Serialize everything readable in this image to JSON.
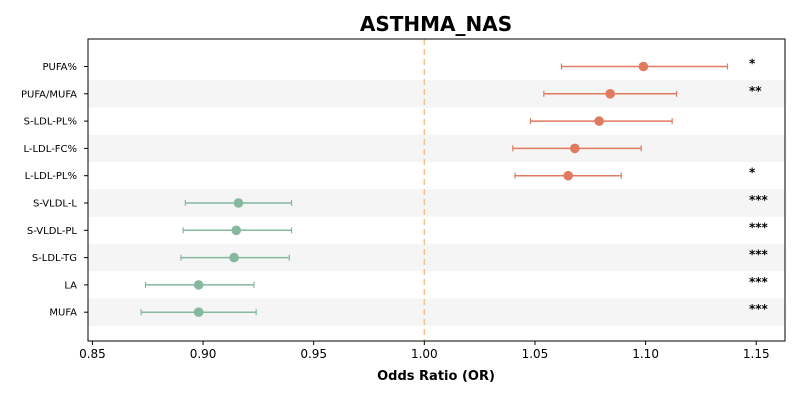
{
  "chart_data": {
    "type": "forest",
    "title": "ASTHMA_NAS",
    "xlabel": "Odds Ratio (OR)",
    "ylabel": "",
    "xlim": [
      0.848,
      1.163
    ],
    "xticks": [
      0.85,
      0.9,
      0.95,
      1.0,
      1.05,
      1.1,
      1.15
    ],
    "xtick_labels": [
      "0.85",
      "0.90",
      "0.95",
      "1.00",
      "1.05",
      "1.10",
      "1.15"
    ],
    "reference_line": 1.0,
    "grid": false,
    "alternating_row_shading": true,
    "colors": {
      "risk": "#E07B5F",
      "protective": "#86B89E",
      "reference_line": "#F5C08A",
      "row_shade": "#F5F5F5"
    },
    "rows": [
      {
        "label": "PUFA%",
        "or": 1.099,
        "lower": 1.062,
        "upper": 1.137,
        "significance": "*",
        "direction": "risk"
      },
      {
        "label": "PUFA/MUFA",
        "or": 1.084,
        "lower": 1.054,
        "upper": 1.114,
        "significance": "**",
        "direction": "risk"
      },
      {
        "label": "S-LDL-PL%",
        "or": 1.079,
        "lower": 1.048,
        "upper": 1.112,
        "significance": "",
        "direction": "risk"
      },
      {
        "label": "L-LDL-FC%",
        "or": 1.068,
        "lower": 1.04,
        "upper": 1.098,
        "significance": "",
        "direction": "risk"
      },
      {
        "label": "L-LDL-PL%",
        "or": 1.065,
        "lower": 1.041,
        "upper": 1.089,
        "significance": "*",
        "direction": "risk"
      },
      {
        "label": "S-VLDL-L",
        "or": 0.916,
        "lower": 0.892,
        "upper": 0.94,
        "significance": "***",
        "direction": "protective"
      },
      {
        "label": "S-VLDL-PL",
        "or": 0.915,
        "lower": 0.891,
        "upper": 0.94,
        "significance": "***",
        "direction": "protective"
      },
      {
        "label": "S-LDL-TG",
        "or": 0.914,
        "lower": 0.89,
        "upper": 0.939,
        "significance": "***",
        "direction": "protective"
      },
      {
        "label": "LA",
        "or": 0.898,
        "lower": 0.874,
        "upper": 0.923,
        "significance": "***",
        "direction": "protective"
      },
      {
        "label": "MUFA",
        "or": 0.898,
        "lower": 0.872,
        "upper": 0.924,
        "significance": "***",
        "direction": "protective"
      }
    ]
  }
}
